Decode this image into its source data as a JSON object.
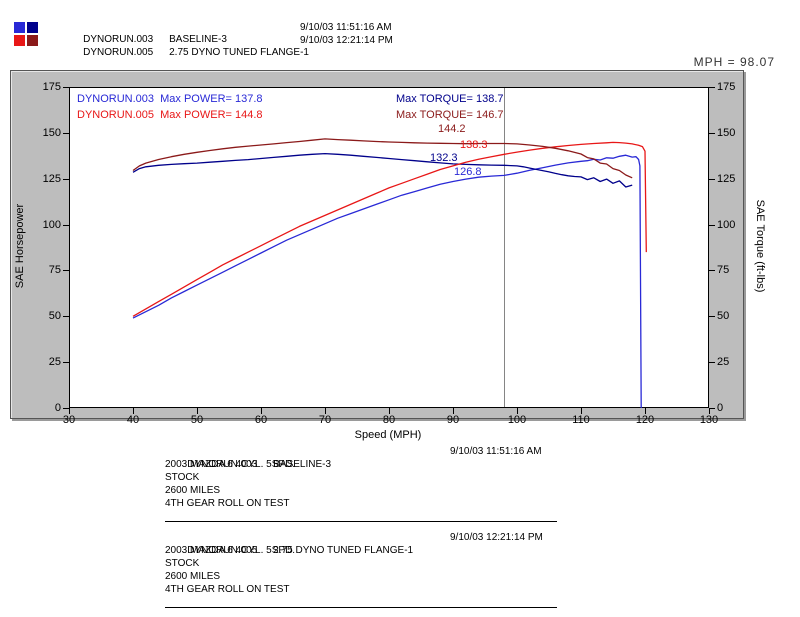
{
  "header": {
    "runs": [
      {
        "name": "DYNORUN.003",
        "desc": "BASELINE-3",
        "timestamp": "9/10/03 11:51:16 AM"
      },
      {
        "name": "DYNORUN.005",
        "desc": "2.75 DYNO TUNED FLANGE-1",
        "timestamp": "9/10/03 12:21:14 PM"
      }
    ],
    "cursor_readout": "MPH = 98.07"
  },
  "colors": {
    "power_run1": "#2929d6",
    "torque_run1": "#00008b",
    "power_run2": "#e81717",
    "torque_run2": "#8b1a1a",
    "cursor_line": "#858585",
    "panel_bg": "#bdbdbd"
  },
  "chart_data": {
    "type": "line",
    "title": "",
    "xlabel": "Speed (MPH)",
    "ylabel_left": "SAE Horsepower",
    "ylabel_right": "SAE Torque (ft-lbs)",
    "xlim": [
      30,
      130
    ],
    "ylim": [
      0,
      175
    ],
    "x_ticks": [
      30,
      40,
      50,
      60,
      70,
      80,
      90,
      100,
      110,
      120,
      130
    ],
    "y_ticks": [
      0,
      25,
      50,
      75,
      100,
      125,
      150,
      175
    ],
    "grid": false,
    "cursor_mph": 98.07,
    "legend": [
      {
        "label": "DYNORUN.003  Max POWER= 137.8",
        "color": "#2929d6"
      },
      {
        "label": "Max TORQUE= 138.7",
        "color": "#00008b"
      },
      {
        "label": "DYNORUN.005  Max POWER= 144.8",
        "color": "#e81717"
      },
      {
        "label": "Max TORQUE= 146.7",
        "color": "#8b1a1a"
      }
    ],
    "cursor_values": [
      {
        "value": "144.2",
        "color": "#8b1a1a"
      },
      {
        "value": "138.3",
        "color": "#e81717"
      },
      {
        "value": "132.3",
        "color": "#00008b"
      },
      {
        "value": "126.8",
        "color": "#2929d6"
      }
    ],
    "series": [
      {
        "name": "DYNORUN.003 Power (SAE HP)",
        "color": "#2929d6",
        "max": 137.8,
        "points": [
          [
            40,
            49
          ],
          [
            42,
            52.5
          ],
          [
            44,
            56
          ],
          [
            46,
            60
          ],
          [
            48,
            63.5
          ],
          [
            50,
            67
          ],
          [
            52,
            70.5
          ],
          [
            54,
            74
          ],
          [
            56,
            77.5
          ],
          [
            58,
            81
          ],
          [
            60,
            84.5
          ],
          [
            62,
            88
          ],
          [
            64,
            91.5
          ],
          [
            66,
            94.5
          ],
          [
            68,
            97.5
          ],
          [
            70,
            100.5
          ],
          [
            72,
            103.5
          ],
          [
            74,
            106
          ],
          [
            76,
            108.5
          ],
          [
            78,
            111
          ],
          [
            80,
            113.5
          ],
          [
            82,
            116
          ],
          [
            84,
            118
          ],
          [
            86,
            120
          ],
          [
            88,
            122
          ],
          [
            90,
            123.5
          ],
          [
            92,
            124.8
          ],
          [
            94,
            125.8
          ],
          [
            96,
            126.4
          ],
          [
            98,
            126.8
          ],
          [
            100,
            128
          ],
          [
            102,
            129.6
          ],
          [
            104,
            131
          ],
          [
            106,
            132.4
          ],
          [
            108,
            133.6
          ],
          [
            110,
            134.5
          ],
          [
            111,
            134.8
          ],
          [
            112,
            135.6
          ],
          [
            113,
            135.2
          ],
          [
            114,
            136.4
          ],
          [
            115,
            136.2
          ],
          [
            116,
            137.2
          ],
          [
            117,
            137.8
          ],
          [
            118,
            136.8
          ],
          [
            118.6,
            137
          ],
          [
            119,
            135.5
          ],
          [
            119.2,
            132
          ],
          [
            119.4,
            0
          ]
        ]
      },
      {
        "name": "DYNORUN.003 Torque (ft-lbs)",
        "color": "#00008b",
        "max": 138.7,
        "points": [
          [
            40,
            128.5
          ],
          [
            41,
            130.5
          ],
          [
            42,
            131.5
          ],
          [
            44,
            132.3
          ],
          [
            46,
            132.8
          ],
          [
            48,
            133.2
          ],
          [
            50,
            133.5
          ],
          [
            52,
            134
          ],
          [
            54,
            134.5
          ],
          [
            56,
            135
          ],
          [
            58,
            135.4
          ],
          [
            60,
            136
          ],
          [
            62,
            136.6
          ],
          [
            64,
            137.2
          ],
          [
            66,
            137.8
          ],
          [
            68,
            138.3
          ],
          [
            70,
            138.7
          ],
          [
            72,
            138.3
          ],
          [
            74,
            137.8
          ],
          [
            76,
            137.2
          ],
          [
            78,
            136.6
          ],
          [
            80,
            136
          ],
          [
            82,
            135.4
          ],
          [
            84,
            134.8
          ],
          [
            86,
            134.2
          ],
          [
            88,
            133.6
          ],
          [
            90,
            133.1
          ],
          [
            92,
            132.8
          ],
          [
            94,
            132.6
          ],
          [
            96,
            132.4
          ],
          [
            98,
            132.3
          ],
          [
            100,
            132
          ],
          [
            101,
            131.5
          ],
          [
            102,
            130.8
          ],
          [
            103,
            130.1
          ],
          [
            104,
            129.4
          ],
          [
            105,
            128.7
          ],
          [
            106,
            127.9
          ],
          [
            107,
            127.2
          ],
          [
            108,
            126.6
          ],
          [
            109,
            126.2
          ],
          [
            110,
            126
          ],
          [
            111,
            124.5
          ],
          [
            112,
            125.5
          ],
          [
            113,
            123.5
          ],
          [
            114,
            124.8
          ],
          [
            115,
            122.5
          ],
          [
            116,
            123.8
          ],
          [
            117,
            120.5
          ],
          [
            118,
            121.5
          ]
        ]
      },
      {
        "name": "DYNORUN.005 Power (SAE HP)",
        "color": "#e81717",
        "max": 144.8,
        "points": [
          [
            40,
            50
          ],
          [
            42,
            54
          ],
          [
            44,
            58
          ],
          [
            46,
            62
          ],
          [
            48,
            66
          ],
          [
            50,
            70
          ],
          [
            52,
            74
          ],
          [
            54,
            78
          ],
          [
            56,
            81.5
          ],
          [
            58,
            85
          ],
          [
            60,
            88.5
          ],
          [
            62,
            92
          ],
          [
            64,
            95.5
          ],
          [
            66,
            99
          ],
          [
            68,
            102
          ],
          [
            70,
            105
          ],
          [
            72,
            108
          ],
          [
            74,
            111
          ],
          [
            76,
            114
          ],
          [
            78,
            117
          ],
          [
            80,
            120
          ],
          [
            82,
            122.5
          ],
          [
            84,
            125
          ],
          [
            86,
            127.5
          ],
          [
            88,
            130
          ],
          [
            90,
            132
          ],
          [
            92,
            134
          ],
          [
            94,
            135.6
          ],
          [
            96,
            137
          ],
          [
            98,
            138.3
          ],
          [
            100,
            139.5
          ],
          [
            102,
            140.6
          ],
          [
            104,
            141.6
          ],
          [
            106,
            142.4
          ],
          [
            108,
            143.1
          ],
          [
            110,
            143.7
          ],
          [
            112,
            144.2
          ],
          [
            114,
            144.6
          ],
          [
            115,
            144.8
          ],
          [
            116,
            144.7
          ],
          [
            117,
            144.4
          ],
          [
            118,
            144
          ],
          [
            119,
            143.2
          ],
          [
            119.6,
            142.5
          ],
          [
            120,
            140
          ],
          [
            120.2,
            85
          ]
        ]
      },
      {
        "name": "DYNORUN.005 Torque (ft-lbs)",
        "color": "#8b1a1a",
        "max": 146.7,
        "points": [
          [
            40,
            129.5
          ],
          [
            41,
            132
          ],
          [
            42,
            133.5
          ],
          [
            44,
            135.5
          ],
          [
            46,
            137
          ],
          [
            48,
            138.3
          ],
          [
            50,
            139.4
          ],
          [
            52,
            140.4
          ],
          [
            54,
            141.3
          ],
          [
            56,
            142.1
          ],
          [
            58,
            142.8
          ],
          [
            60,
            143.4
          ],
          [
            62,
            144
          ],
          [
            64,
            144.7
          ],
          [
            66,
            145.3
          ],
          [
            68,
            146
          ],
          [
            70,
            146.7
          ],
          [
            72,
            146.3
          ],
          [
            74,
            146
          ],
          [
            76,
            145.6
          ],
          [
            78,
            145.3
          ],
          [
            80,
            145
          ],
          [
            82,
            144.8
          ],
          [
            84,
            144.6
          ],
          [
            86,
            144.4
          ],
          [
            88,
            144.3
          ],
          [
            90,
            144.2
          ],
          [
            92,
            144.1
          ],
          [
            94,
            144.2
          ],
          [
            96,
            144.2
          ],
          [
            98,
            144.2
          ],
          [
            100,
            144
          ],
          [
            102,
            143.4
          ],
          [
            104,
            142.6
          ],
          [
            106,
            141.6
          ],
          [
            108,
            140.2
          ],
          [
            110,
            138.5
          ],
          [
            111,
            136.5
          ],
          [
            112,
            135.8
          ],
          [
            113,
            133.5
          ],
          [
            114,
            133
          ],
          [
            115,
            130.5
          ],
          [
            116,
            129.5
          ],
          [
            117,
            127
          ],
          [
            118,
            125.5
          ]
        ]
      }
    ]
  },
  "details": [
    {
      "name": "DYNORUN.003",
      "desc": "BASELINE-3",
      "timestamp": "9/10/03 11:51:16 AM",
      "lines": [
        "2003 MAZDA 6 4CYL. 5SPD.",
        "STOCK",
        "2600 MILES",
        "4TH GEAR ROLL ON TEST"
      ]
    },
    {
      "name": "DYNORUN.005",
      "desc": "2.75 DYNO TUNED FLANGE-1",
      "timestamp": "9/10/03 12:21:14 PM",
      "lines": [
        "2003 MAZDA 6 4CYL. 5SPD.",
        "STOCK",
        "2600 MILES",
        "4TH GEAR ROLL ON TEST"
      ]
    }
  ]
}
